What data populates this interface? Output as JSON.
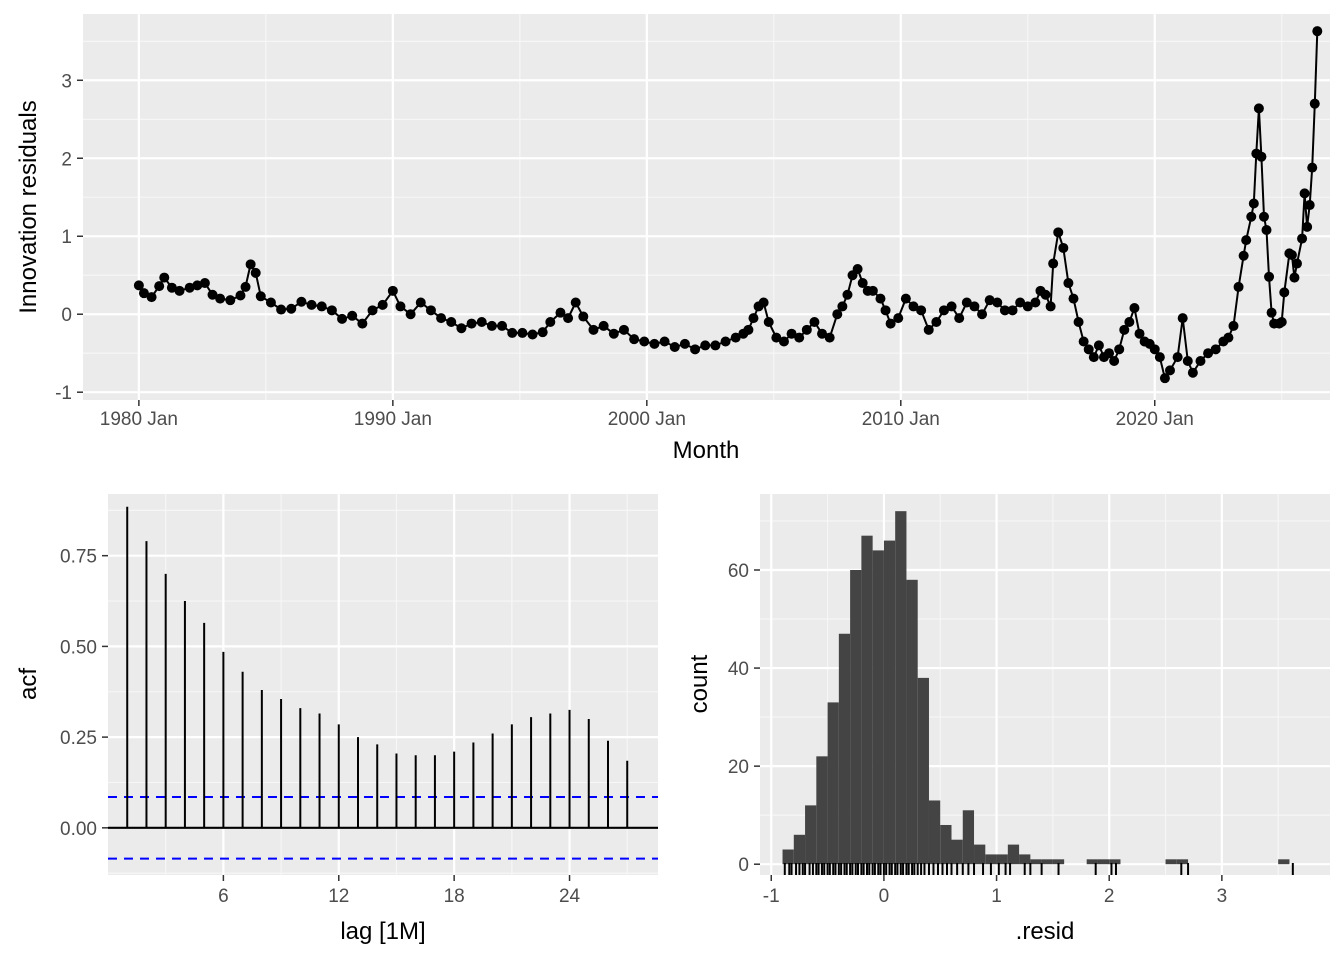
{
  "chart_data": [
    {
      "type": "line",
      "xlabel": "Month",
      "ylabel": "Innovation residuals",
      "xticks": [
        "1980 Jan",
        "1990 Jan",
        "2000 Jan",
        "2010 Jan",
        "2020 Jan"
      ],
      "yticks": [
        "-1",
        "0",
        "1",
        "2",
        "3"
      ],
      "xlim": [
        1977.8,
        2026.9
      ],
      "ylim": [
        -1.1,
        3.85
      ],
      "grid": true,
      "series": [
        {
          "points": [
            [
              1980.0,
              0.37
            ],
            [
              1980.2,
              0.27
            ],
            [
              1980.5,
              0.22
            ],
            [
              1980.8,
              0.36
            ],
            [
              1981.0,
              0.47
            ],
            [
              1981.3,
              0.34
            ],
            [
              1981.6,
              0.3
            ],
            [
              1982.0,
              0.34
            ],
            [
              1982.3,
              0.37
            ],
            [
              1982.6,
              0.4
            ],
            [
              1982.9,
              0.25
            ],
            [
              1983.2,
              0.2
            ],
            [
              1983.6,
              0.18
            ],
            [
              1984.0,
              0.24
            ],
            [
              1984.2,
              0.35
            ],
            [
              1984.4,
              0.64
            ],
            [
              1984.6,
              0.53
            ],
            [
              1984.8,
              0.23
            ],
            [
              1985.2,
              0.15
            ],
            [
              1985.6,
              0.06
            ],
            [
              1986.0,
              0.07
            ],
            [
              1986.4,
              0.16
            ],
            [
              1986.8,
              0.12
            ],
            [
              1987.2,
              0.1
            ],
            [
              1987.6,
              0.05
            ],
            [
              1988.0,
              -0.06
            ],
            [
              1988.4,
              -0.02
            ],
            [
              1988.8,
              -0.12
            ],
            [
              1989.2,
              0.05
            ],
            [
              1989.6,
              0.12
            ],
            [
              1990.0,
              0.3
            ],
            [
              1990.3,
              0.1
            ],
            [
              1990.7,
              0.0
            ],
            [
              1991.1,
              0.15
            ],
            [
              1991.5,
              0.05
            ],
            [
              1991.9,
              -0.05
            ],
            [
              1992.3,
              -0.1
            ],
            [
              1992.7,
              -0.18
            ],
            [
              1993.1,
              -0.12
            ],
            [
              1993.5,
              -0.1
            ],
            [
              1993.9,
              -0.15
            ],
            [
              1994.3,
              -0.15
            ],
            [
              1994.7,
              -0.24
            ],
            [
              1995.1,
              -0.24
            ],
            [
              1995.5,
              -0.26
            ],
            [
              1995.9,
              -0.23
            ],
            [
              1996.2,
              -0.1
            ],
            [
              1996.6,
              0.02
            ],
            [
              1996.9,
              -0.05
            ],
            [
              1997.2,
              0.15
            ],
            [
              1997.5,
              -0.03
            ],
            [
              1997.9,
              -0.2
            ],
            [
              1998.3,
              -0.15
            ],
            [
              1998.7,
              -0.25
            ],
            [
              1999.1,
              -0.2
            ],
            [
              1999.5,
              -0.32
            ],
            [
              1999.9,
              -0.35
            ],
            [
              2000.3,
              -0.38
            ],
            [
              2000.7,
              -0.35
            ],
            [
              2001.1,
              -0.42
            ],
            [
              2001.5,
              -0.38
            ],
            [
              2001.9,
              -0.45
            ],
            [
              2002.3,
              -0.4
            ],
            [
              2002.7,
              -0.4
            ],
            [
              2003.1,
              -0.35
            ],
            [
              2003.5,
              -0.3
            ],
            [
              2003.8,
              -0.25
            ],
            [
              2004.0,
              -0.2
            ],
            [
              2004.2,
              -0.05
            ],
            [
              2004.4,
              0.1
            ],
            [
              2004.6,
              0.15
            ],
            [
              2004.8,
              -0.1
            ],
            [
              2005.1,
              -0.3
            ],
            [
              2005.4,
              -0.35
            ],
            [
              2005.7,
              -0.25
            ],
            [
              2006.0,
              -0.3
            ],
            [
              2006.3,
              -0.2
            ],
            [
              2006.6,
              -0.1
            ],
            [
              2006.9,
              -0.25
            ],
            [
              2007.2,
              -0.3
            ],
            [
              2007.5,
              0.0
            ],
            [
              2007.7,
              0.1
            ],
            [
              2007.9,
              0.25
            ],
            [
              2008.1,
              0.5
            ],
            [
              2008.3,
              0.58
            ],
            [
              2008.5,
              0.4
            ],
            [
              2008.7,
              0.3
            ],
            [
              2008.9,
              0.3
            ],
            [
              2009.2,
              0.2
            ],
            [
              2009.4,
              0.05
            ],
            [
              2009.6,
              -0.12
            ],
            [
              2009.9,
              -0.05
            ],
            [
              2010.2,
              0.2
            ],
            [
              2010.5,
              0.1
            ],
            [
              2010.8,
              0.05
            ],
            [
              2011.1,
              -0.2
            ],
            [
              2011.4,
              -0.1
            ],
            [
              2011.7,
              0.05
            ],
            [
              2012.0,
              0.1
            ],
            [
              2012.3,
              -0.05
            ],
            [
              2012.6,
              0.15
            ],
            [
              2012.9,
              0.1
            ],
            [
              2013.2,
              0.0
            ],
            [
              2013.5,
              0.18
            ],
            [
              2013.8,
              0.15
            ],
            [
              2014.1,
              0.05
            ],
            [
              2014.4,
              0.05
            ],
            [
              2014.7,
              0.15
            ],
            [
              2015.0,
              0.1
            ],
            [
              2015.3,
              0.15
            ],
            [
              2015.5,
              0.3
            ],
            [
              2015.7,
              0.25
            ],
            [
              2015.9,
              0.1
            ],
            [
              2016.0,
              0.65
            ],
            [
              2016.2,
              1.05
            ],
            [
              2016.4,
              0.85
            ],
            [
              2016.6,
              0.4
            ],
            [
              2016.8,
              0.2
            ],
            [
              2017.0,
              -0.1
            ],
            [
              2017.2,
              -0.35
            ],
            [
              2017.4,
              -0.45
            ],
            [
              2017.6,
              -0.55
            ],
            [
              2017.8,
              -0.4
            ],
            [
              2018.0,
              -0.55
            ],
            [
              2018.2,
              -0.5
            ],
            [
              2018.4,
              -0.6
            ],
            [
              2018.6,
              -0.45
            ],
            [
              2018.8,
              -0.2
            ],
            [
              2019.0,
              -0.1
            ],
            [
              2019.2,
              0.08
            ],
            [
              2019.4,
              -0.25
            ],
            [
              2019.6,
              -0.35
            ],
            [
              2019.8,
              -0.38
            ],
            [
              2020.0,
              -0.45
            ],
            [
              2020.2,
              -0.55
            ],
            [
              2020.4,
              -0.82
            ],
            [
              2020.6,
              -0.72
            ],
            [
              2020.9,
              -0.55
            ],
            [
              2021.1,
              -0.05
            ],
            [
              2021.3,
              -0.6
            ],
            [
              2021.5,
              -0.75
            ],
            [
              2021.8,
              -0.6
            ],
            [
              2022.1,
              -0.5
            ],
            [
              2022.4,
              -0.45
            ],
            [
              2022.7,
              -0.35
            ],
            [
              2022.9,
              -0.3
            ],
            [
              2023.1,
              -0.15
            ],
            [
              2023.3,
              0.35
            ],
            [
              2023.5,
              0.75
            ],
            [
              2023.6,
              0.95
            ],
            [
              2023.8,
              1.25
            ],
            [
              2023.9,
              1.42
            ],
            [
              2024.0,
              2.06
            ],
            [
              2024.1,
              2.64
            ],
            [
              2024.2,
              2.02
            ],
            [
              2024.3,
              1.25
            ],
            [
              2024.4,
              1.08
            ],
            [
              2024.5,
              0.48
            ],
            [
              2024.6,
              0.02
            ],
            [
              2024.7,
              -0.12
            ],
            [
              2024.9,
              -0.12
            ],
            [
              2025.0,
              -0.1
            ],
            [
              2025.1,
              0.28
            ],
            [
              2025.3,
              0.78
            ],
            [
              2025.4,
              0.76
            ],
            [
              2025.5,
              0.47
            ],
            [
              2025.6,
              0.65
            ],
            [
              2025.8,
              0.97
            ],
            [
              2025.9,
              1.55
            ],
            [
              2026.0,
              1.12
            ],
            [
              2026.1,
              1.4
            ],
            [
              2026.2,
              1.88
            ],
            [
              2026.3,
              2.7
            ],
            [
              2026.4,
              3.63
            ]
          ]
        }
      ]
    },
    {
      "type": "bar",
      "xlabel": "lag [1M]",
      "ylabel": "acf",
      "xticks": [
        "6",
        "12",
        "18",
        "24"
      ],
      "yticks": [
        "0.00",
        "0.25",
        "0.50",
        "0.75"
      ],
      "xlim": [
        0.0,
        28.6
      ],
      "ylim": [
        -0.13,
        0.92
      ],
      "grid": true,
      "lags": [
        1,
        2,
        3,
        4,
        5,
        6,
        7,
        8,
        9,
        10,
        11,
        12,
        13,
        14,
        15,
        16,
        17,
        18,
        19,
        20,
        21,
        22,
        23,
        24,
        25,
        26,
        27
      ],
      "values": [
        0.885,
        0.79,
        0.7,
        0.625,
        0.565,
        0.485,
        0.43,
        0.38,
        0.355,
        0.33,
        0.315,
        0.285,
        0.25,
        0.23,
        0.205,
        0.2,
        0.2,
        0.21,
        0.235,
        0.26,
        0.285,
        0.305,
        0.315,
        0.325,
        0.3,
        0.24,
        0.185
      ],
      "confidence_bounds": [
        0.085,
        -0.085
      ]
    },
    {
      "type": "bar",
      "xlabel": ".resid",
      "ylabel": "count",
      "xticks": [
        "-1",
        "0",
        "1",
        "2",
        "3"
      ],
      "yticks": [
        "0",
        "20",
        "40",
        "60"
      ],
      "xlim": [
        -1.1,
        3.96
      ],
      "ylim": [
        -2.2,
        75.5
      ],
      "grid": true,
      "bin_width": 0.1,
      "bin_starts": [
        -0.9,
        -0.8,
        -0.7,
        -0.6,
        -0.5,
        -0.4,
        -0.3,
        -0.2,
        -0.1,
        0.0,
        0.1,
        0.2,
        0.3,
        0.4,
        0.5,
        0.6,
        0.7,
        0.8,
        0.9,
        1.0,
        1.1,
        1.2,
        1.3,
        1.4,
        1.5,
        1.8,
        1.9,
        2.0,
        2.5,
        2.6,
        3.5
      ],
      "counts": [
        3,
        6,
        12,
        22,
        33,
        47,
        60,
        67,
        64,
        66,
        72,
        58,
        38,
        13,
        8,
        5,
        11,
        4,
        2,
        2,
        4,
        2,
        1,
        1,
        1,
        1,
        1,
        1,
        1,
        1,
        1
      ],
      "rug": [
        -0.88,
        -0.84,
        -0.82,
        -0.78,
        -0.75,
        -0.72,
        -0.7,
        -0.66,
        -0.63,
        -0.6,
        -0.58,
        -0.55,
        -0.53,
        -0.5,
        -0.48,
        -0.45,
        -0.43,
        -0.4,
        -0.38,
        -0.35,
        -0.33,
        -0.3,
        -0.28,
        -0.25,
        -0.23,
        -0.2,
        -0.18,
        -0.15,
        -0.13,
        -0.1,
        -0.08,
        -0.05,
        -0.03,
        0.0,
        0.02,
        0.05,
        0.07,
        0.1,
        0.12,
        0.15,
        0.17,
        0.2,
        0.22,
        0.25,
        0.27,
        0.3,
        0.33,
        0.36,
        0.4,
        0.44,
        0.48,
        0.52,
        0.56,
        0.6,
        0.65,
        0.7,
        0.75,
        0.8,
        0.88,
        0.95,
        1.02,
        1.08,
        1.12,
        1.25,
        1.3,
        1.4,
        1.55,
        1.88,
        2.02,
        2.06,
        2.64,
        2.7,
        3.63
      ]
    }
  ]
}
